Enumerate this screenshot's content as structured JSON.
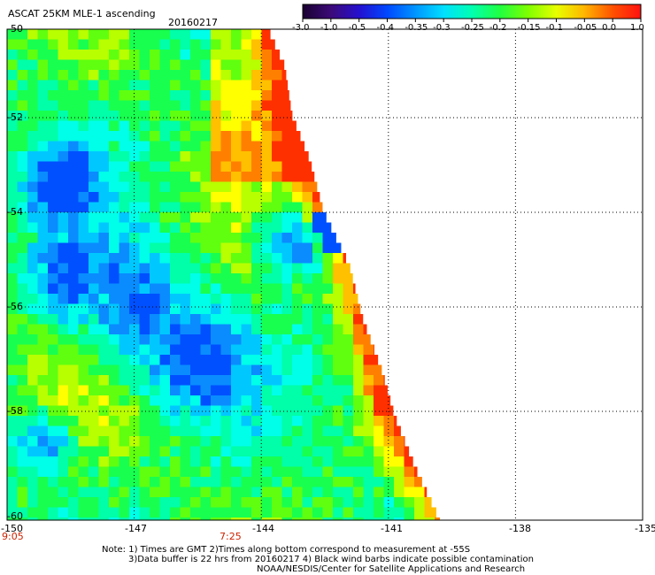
{
  "title": "ASCAT 25KM MLE-1 ascending",
  "date": "20160217",
  "colorbar": {
    "labels": [
      "-3.0",
      "-1.0",
      "-0.5",
      "-0.4",
      "-0.35",
      "-0.3",
      "-0.25",
      "-0.2",
      "-0.15",
      "-0.1",
      "-0.05",
      "0.0",
      "1.0"
    ],
    "colors": [
      "#1a0030",
      "#3c0a78",
      "#2410d0",
      "#0048ff",
      "#0096ff",
      "#00e0ff",
      "#00ffb0",
      "#20ff40",
      "#80ff00",
      "#e8ff00",
      "#ffb400",
      "#ff5000",
      "#ff1010"
    ]
  },
  "lat_labels": [
    "-50",
    "-52",
    "-54",
    "-56",
    "-58",
    "-60"
  ],
  "lon_labels": [
    "-150",
    "-147",
    "-144",
    "-141",
    "-138",
    "-135"
  ],
  "time_labels": [
    "9:05",
    "7:25"
  ],
  "grid": {
    "lon_range": [
      -150,
      -135
    ],
    "lat_range": [
      -60,
      -50
    ]
  },
  "notes": [
    "Note: 1) Times are GMT 2)Times along bottom correspond to measurement at -55S",
    "3)Data buffer is 22 hrs from 20160217 4) Black wind barbs indicate possible contamination",
    "NOAA/NESDIS/Center for Satellite Applications and Research"
  ]
}
